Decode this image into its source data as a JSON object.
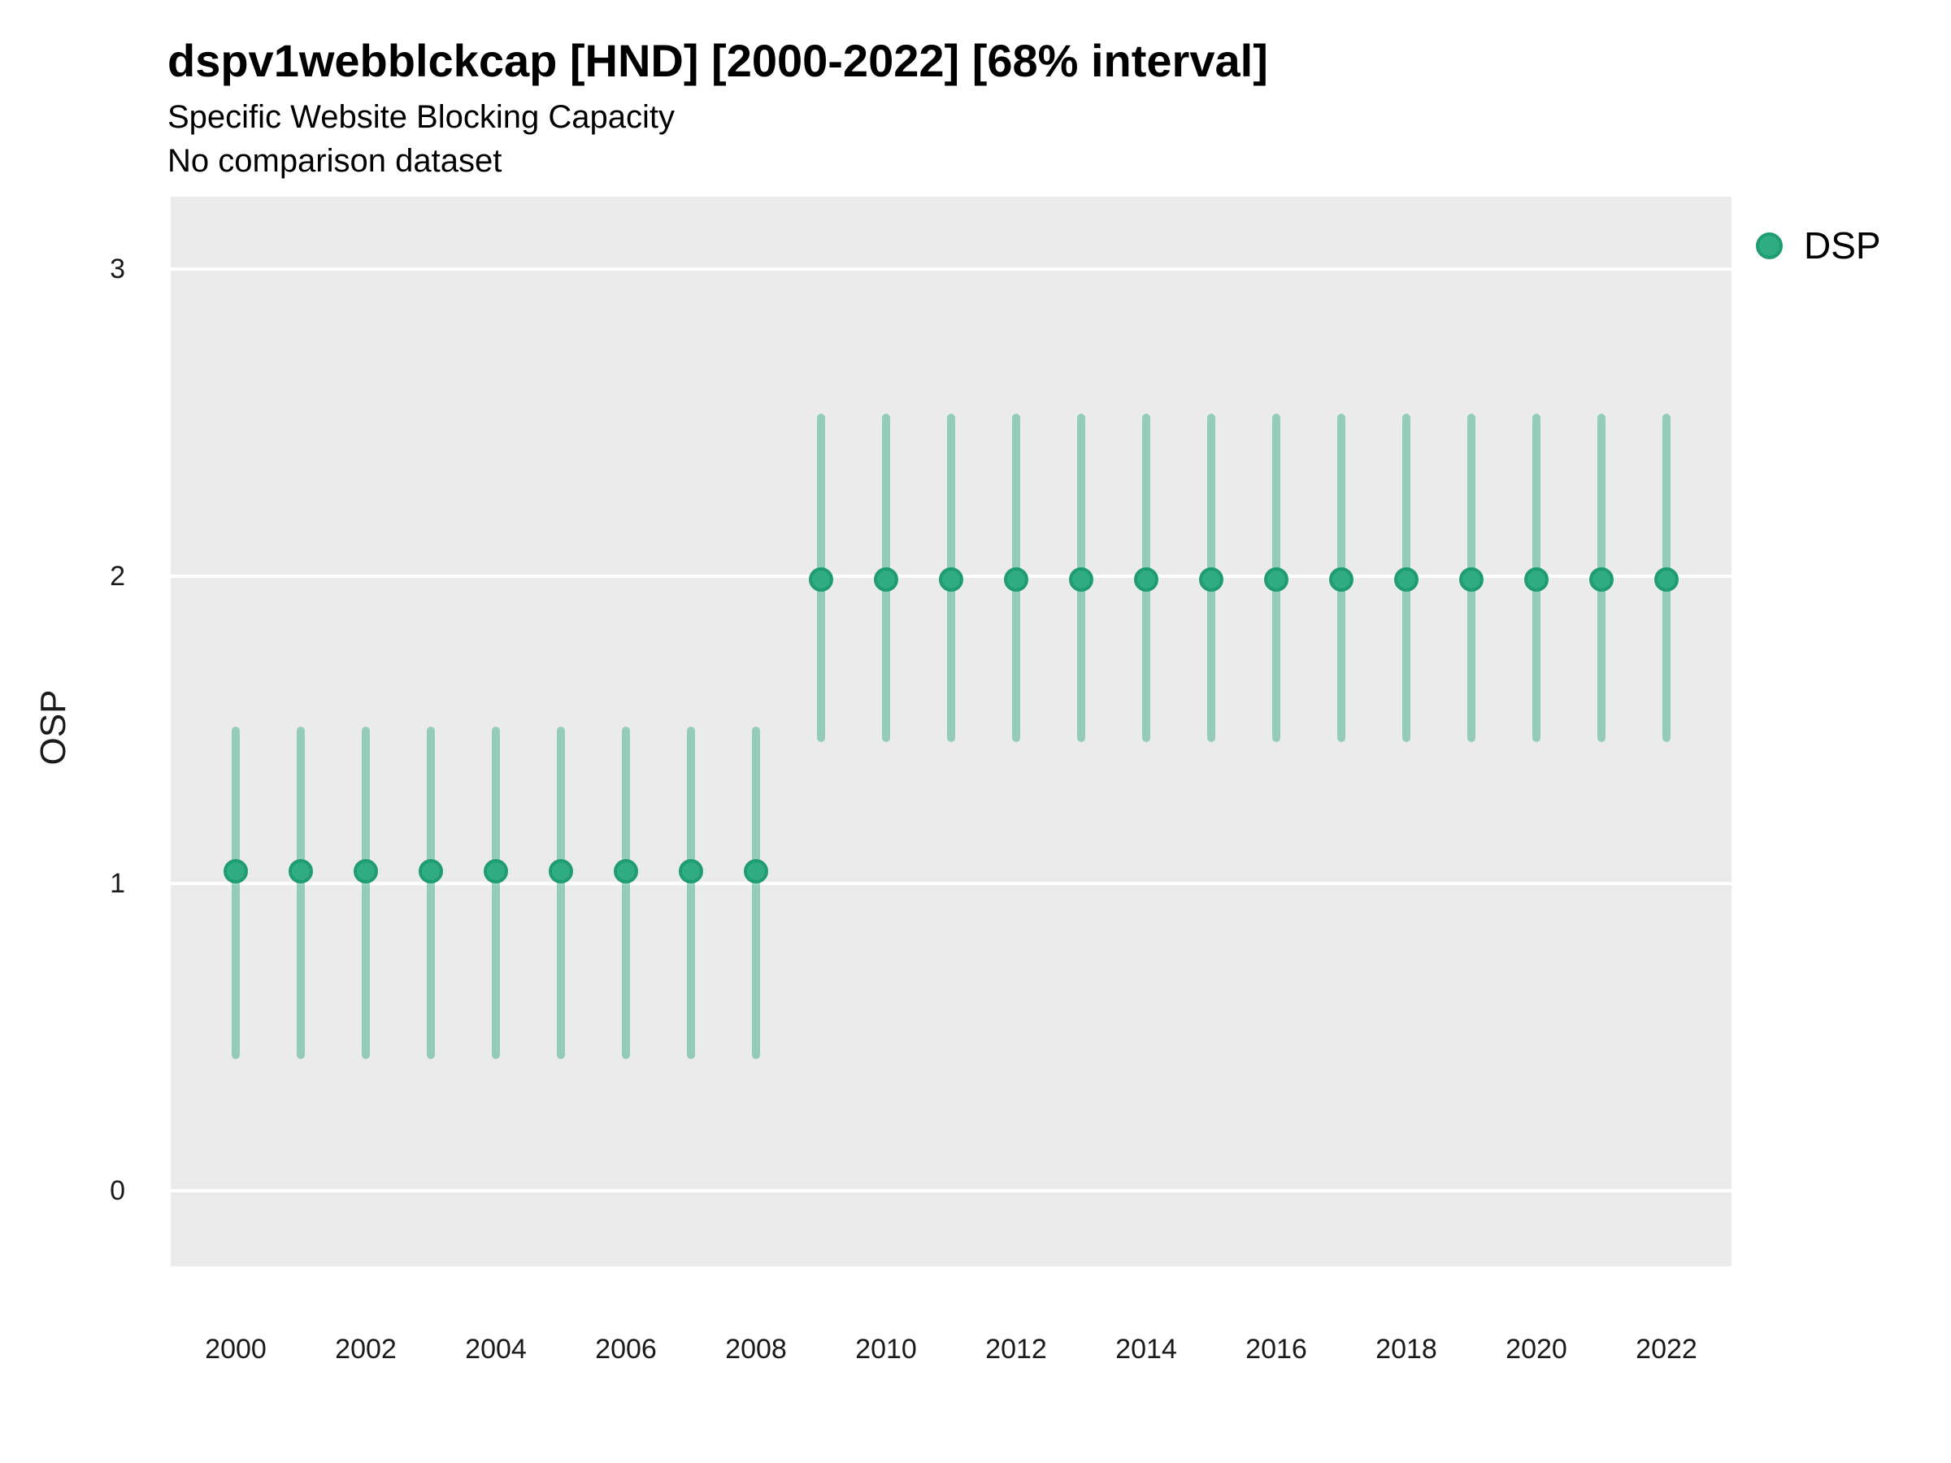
{
  "header": {
    "title": "dspv1webblckcap [HND] [2000-2022] [68% interval]",
    "subtitle1": "Specific Website Blocking Capacity",
    "subtitle2": "No comparison dataset"
  },
  "axes": {
    "y_label": "OSP",
    "y_ticks": [
      0,
      1,
      2,
      3
    ],
    "x_ticks": [
      2000,
      2002,
      2004,
      2006,
      2008,
      2010,
      2012,
      2014,
      2016,
      2018,
      2020,
      2022
    ]
  },
  "legend": {
    "position": "right",
    "items": [
      {
        "label": "DSP",
        "color": "#2FAC83"
      }
    ]
  },
  "colors": {
    "panel_bg": "#EBEBEB",
    "gridline": "#FFFFFF",
    "point_fill": "#2FAC83",
    "point_stroke": "#1F9C72",
    "interval_bar": "rgba(39,166,123,0.45)",
    "text": "#1a1a1a"
  },
  "chart_data": {
    "type": "scatter",
    "title": "dspv1webblckcap [HND] [2000-2022] [68% interval]",
    "subtitle": "Specific Website Blocking Capacity",
    "note": "No comparison dataset",
    "xlabel": "",
    "ylabel": "OSP",
    "interval": "68%",
    "grid": "horizontal-major-only",
    "legend_position": "right",
    "xlim": [
      1999,
      2023
    ],
    "ylim": [
      -0.245,
      3.235
    ],
    "x_tick_labels": [
      2000,
      2002,
      2004,
      2006,
      2008,
      2010,
      2012,
      2014,
      2016,
      2018,
      2020,
      2022
    ],
    "y_tick_labels": [
      0,
      1,
      2,
      3
    ],
    "series": [
      {
        "name": "DSP",
        "x": [
          2000,
          2001,
          2002,
          2003,
          2004,
          2005,
          2006,
          2007,
          2008,
          2009,
          2010,
          2011,
          2012,
          2013,
          2014,
          2015,
          2016,
          2017,
          2018,
          2019,
          2020,
          2021,
          2022
        ],
        "y": [
          1.04,
          1.04,
          1.04,
          1.04,
          1.04,
          1.04,
          1.04,
          1.04,
          1.04,
          1.99,
          1.99,
          1.99,
          1.99,
          1.99,
          1.99,
          1.99,
          1.99,
          1.99,
          1.99,
          1.99,
          1.99,
          1.99,
          1.99
        ],
        "y_lo": [
          0.43,
          0.43,
          0.43,
          0.43,
          0.43,
          0.43,
          0.43,
          0.43,
          0.43,
          1.46,
          1.46,
          1.46,
          1.46,
          1.46,
          1.46,
          1.46,
          1.46,
          1.46,
          1.46,
          1.46,
          1.46,
          1.46,
          1.46
        ],
        "y_hi": [
          1.51,
          1.51,
          1.51,
          1.51,
          1.51,
          1.51,
          1.51,
          1.51,
          1.51,
          2.53,
          2.53,
          2.53,
          2.53,
          2.53,
          2.53,
          2.53,
          2.53,
          2.53,
          2.53,
          2.53,
          2.53,
          2.53,
          2.53
        ]
      }
    ]
  }
}
